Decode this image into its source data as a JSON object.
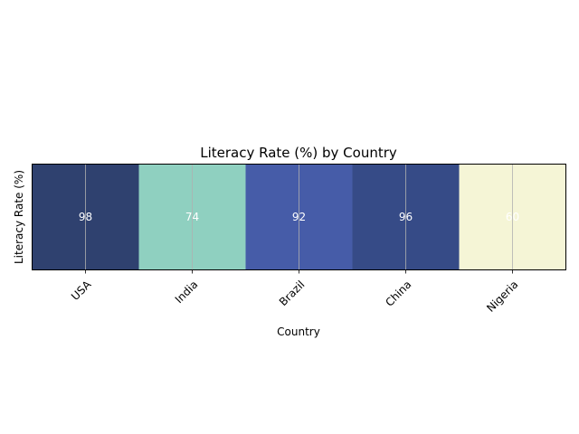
{
  "chart_data": {
    "type": "heatmap",
    "title": "Literacy Rate (%) by Country",
    "xlabel": "Country",
    "ylabel": "Literacy Rate (%)",
    "categories": [
      "USA",
      "India",
      "Brazil",
      "China",
      "Nigeria"
    ],
    "values": [
      98,
      74,
      92,
      96,
      60
    ],
    "grid": true,
    "colormap": "YlGnBu",
    "cell_colors": [
      "#2f416f",
      "#8fd0c0",
      "#465ca8",
      "#364b87",
      "#f5f5d6"
    ],
    "cell_label_color": "#ffffff"
  }
}
